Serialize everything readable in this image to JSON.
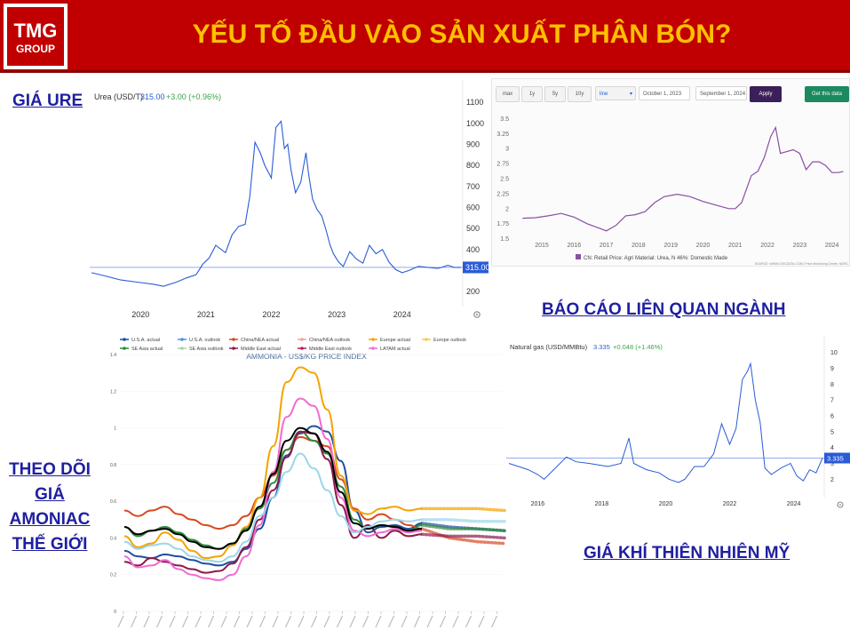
{
  "title": "YẾU TỐ ĐẦU VÀO SẢN XUẤT PHÂN BÓN?",
  "logo": {
    "line1": "TMG",
    "line2": "GROUP"
  },
  "headings": {
    "urea": "GIÁ URE",
    "reports": "BÁO CÁO LIÊN QUAN NGÀNH",
    "ammonia": [
      "THEO DÕI",
      "GIÁ",
      "AMONIAC",
      "THẾ GIỚI"
    ],
    "gas": "GIÁ KHÍ THIÊN NHIÊN MỸ"
  },
  "colors": {
    "banner": "#c00000",
    "title": "#ffc000",
    "heading": "#1f1fa0",
    "urea_line": "#2a5bd7",
    "cn_line": "#8a4fa3",
    "gas_line": "#2a5bd7"
  },
  "ceic_toolbar": {
    "buttons": [
      "max",
      "1y",
      "5y",
      "10y"
    ],
    "chart_type": "line",
    "start_date": "October 1, 2023",
    "end_date": "September 1, 2024",
    "apply": "Apply",
    "get_data": "Get this data"
  },
  "chart_data": [
    {
      "type": "line",
      "title": "Urea (USD/T)",
      "quote": {
        "price": "315.00",
        "change": "+3.00 (+0.96%)"
      },
      "last_value_label": "315.00",
      "x_ticks": [
        "2020",
        "2021",
        "2022",
        "2023",
        "2024"
      ],
      "y_ticks": [
        "1100",
        "1000",
        "900",
        "800",
        "700",
        "600",
        "500",
        "400",
        "300",
        "200"
      ],
      "ylim": [
        150,
        1130
      ],
      "xlim": [
        2019.3,
        2024.95
      ],
      "series": [
        {
          "x": [
            2019.3,
            2019.5,
            2019.75,
            2020.0,
            2020.25,
            2020.4,
            2020.6,
            2020.75,
            2020.9,
            2021.0,
            2021.1,
            2021.2,
            2021.35,
            2021.45,
            2021.55,
            2021.65,
            2021.72,
            2021.8,
            2021.88,
            2021.95,
            2022.05,
            2022.12,
            2022.2,
            2022.25,
            2022.3,
            2022.35,
            2022.42,
            2022.5,
            2022.58,
            2022.62,
            2022.68,
            2022.75,
            2022.82,
            2022.88,
            2022.95,
            2023.0,
            2023.08,
            2023.15,
            2023.25,
            2023.35,
            2023.45,
            2023.55,
            2023.65,
            2023.75,
            2023.85,
            2023.95,
            2024.05,
            2024.15,
            2024.3,
            2024.45,
            2024.6,
            2024.75,
            2024.85,
            2024.95
          ],
          "y": [
            290,
            275,
            255,
            245,
            235,
            225,
            245,
            265,
            280,
            330,
            360,
            420,
            385,
            470,
            510,
            520,
            650,
            910,
            860,
            800,
            740,
            980,
            1010,
            880,
            900,
            780,
            670,
            720,
            860,
            760,
            640,
            590,
            560,
            500,
            420,
            380,
            340,
            320,
            390,
            355,
            335,
            420,
            380,
            400,
            340,
            305,
            290,
            300,
            320,
            315,
            310,
            325,
            315,
            315
          ]
        }
      ]
    },
    {
      "type": "line",
      "series": [
        {
          "name": "CN: Retail Price: Agri Material: Urea, N 46%: Domestic Made",
          "x": [
            2014.4,
            2014.8,
            2015.2,
            2015.6,
            2016.0,
            2016.4,
            2016.8,
            2017.0,
            2017.3,
            2017.6,
            2017.9,
            2018.2,
            2018.5,
            2018.8,
            2019.2,
            2019.6,
            2020.0,
            2020.4,
            2020.8,
            2021.0,
            2021.2,
            2021.5,
            2021.7,
            2021.9,
            2022.1,
            2022.25,
            2022.4,
            2022.6,
            2022.8,
            2023.0,
            2023.2,
            2023.4,
            2023.6,
            2023.8,
            2024.0,
            2024.2,
            2024.35
          ],
          "y": [
            1.84,
            1.85,
            1.88,
            1.92,
            1.86,
            1.75,
            1.67,
            1.63,
            1.72,
            1.88,
            1.9,
            1.95,
            2.1,
            2.2,
            2.24,
            2.2,
            2.12,
            2.06,
            2.0,
            2.0,
            2.1,
            2.55,
            2.62,
            2.85,
            3.2,
            3.35,
            2.92,
            2.95,
            2.98,
            2.92,
            2.65,
            2.78,
            2.78,
            2.72,
            2.6,
            2.6,
            2.62
          ]
        }
      ],
      "x_ticks": [
        "2015",
        "2016",
        "2017",
        "2018",
        "2019",
        "2020",
        "2021",
        "2022",
        "2023",
        "2024"
      ],
      "y_ticks": [
        "3.5",
        "3.25",
        "3",
        "2.75",
        "2.5",
        "2.25",
        "2",
        "1.75",
        "1.5"
      ],
      "ylim": [
        1.45,
        3.55
      ],
      "xlim": [
        2014.2,
        2024.45
      ],
      "source": "SOURCE: WWW.CEICDATA.COM | Price Monitoring Center, NDRC"
    },
    {
      "type": "line",
      "title": "AMMONIA - US$/KG PRICE INDEX",
      "ylim": [
        0,
        1.4
      ],
      "y_ticks": [
        "1.4",
        "1.2",
        "1",
        "0.8",
        "0.6",
        "0.4",
        "0.2",
        "0"
      ],
      "legend": [
        "U.S.A. actual",
        "U.S.A. outlook",
        "China/NEA actual",
        "China/NEA outlook",
        "Europe actual",
        "Europe outlook",
        "SE Asia actual",
        "SE Asia outlook",
        "Middle East actual",
        "Middle East outlook",
        "LATAM actual"
      ],
      "series": [
        {
          "name": "U.S.A. actual",
          "color": "#1f4e9e",
          "values": [
            0.33,
            0.3,
            0.29,
            0.31,
            0.3,
            0.28,
            0.26,
            0.25,
            0.27,
            0.34,
            0.45,
            0.62,
            0.85,
            0.97,
            1.01,
            0.98,
            0.82,
            0.55,
            0.43,
            0.46,
            0.47,
            0.45,
            0.48
          ],
          "outlook": [
            0.46,
            0.45,
            0.44
          ]
        },
        {
          "name": "China/NEA actual",
          "color": "#d9481e",
          "values": [
            0.55,
            0.52,
            0.55,
            0.57,
            0.53,
            0.5,
            0.47,
            0.45,
            0.47,
            0.52,
            0.62,
            0.74,
            0.88,
            0.95,
            0.93,
            0.9,
            0.72,
            0.56,
            0.5,
            0.53,
            0.5,
            0.47,
            0.45
          ],
          "outlook": [
            0.4,
            0.38,
            0.37
          ]
        },
        {
          "name": "Europe actual",
          "color": "#f4a300",
          "values": [
            0.41,
            0.35,
            0.37,
            0.43,
            0.39,
            0.33,
            0.29,
            0.3,
            0.36,
            0.46,
            0.62,
            0.9,
            1.25,
            1.33,
            1.3,
            1.1,
            0.74,
            0.55,
            0.53,
            0.56,
            0.57,
            0.55,
            0.56
          ],
          "outlook": [
            0.56,
            0.56,
            0.55
          ]
        },
        {
          "name": "SE Asia actual",
          "color": "#2e8b3a",
          "values": [
            0.46,
            0.41,
            0.44,
            0.46,
            0.43,
            0.39,
            0.36,
            0.34,
            0.37,
            0.45,
            0.56,
            0.7,
            0.88,
            0.98,
            0.93,
            0.86,
            0.68,
            0.5,
            0.45,
            0.47,
            0.46,
            0.44,
            0.47
          ],
          "outlook": [
            0.45,
            0.45,
            0.44
          ]
        },
        {
          "name": "Middle East actual",
          "color": "#8b1a4a",
          "values": [
            0.27,
            0.25,
            0.29,
            0.27,
            0.25,
            0.23,
            0.21,
            0.22,
            0.26,
            0.35,
            0.5,
            0.66,
            0.84,
            0.98,
            0.97,
            0.83,
            0.58,
            0.4,
            0.47,
            0.4,
            0.44,
            0.41,
            0.42
          ],
          "outlook": [
            0.41,
            0.41,
            0.4
          ]
        },
        {
          "name": "LATAM actual",
          "color": "#f06bd0",
          "values": [
            0.3,
            0.24,
            0.25,
            0.28,
            0.23,
            0.2,
            0.18,
            0.17,
            0.2,
            0.3,
            0.47,
            0.76,
            1.06,
            1.16,
            1.12,
            0.94,
            0.62,
            0.44,
            0.41,
            0.43,
            0.45,
            0.43,
            0.44
          ],
          "outlook": []
        },
        {
          "name": "Black",
          "color": "#000000",
          "values": [
            0.46,
            0.42,
            0.44,
            0.45,
            0.42,
            0.38,
            0.35,
            0.34,
            0.37,
            0.44,
            0.57,
            0.75,
            0.93,
            1.0,
            0.97,
            0.87,
            0.65,
            0.48,
            0.45,
            0.47,
            0.46,
            0.44,
            0.45
          ],
          "outlook": []
        },
        {
          "name": "SE Asia outlook",
          "color": "#9ad6ea",
          "values": [
            0.38,
            0.34,
            0.36,
            0.37,
            0.34,
            0.3,
            0.28,
            0.27,
            0.3,
            0.38,
            0.52,
            0.62,
            0.76,
            0.86,
            0.78,
            0.66,
            0.52,
            0.43,
            0.46,
            0.49,
            0.5,
            0.49,
            0.5
          ],
          "outlook": [
            0.5,
            0.49,
            0.49
          ]
        }
      ]
    },
    {
      "type": "line",
      "title": "Natural gas (USD/MMBtu)",
      "quote": {
        "price": "3.335",
        "change": "+0.048 (+1.46%)"
      },
      "last_value_label": "3.335",
      "x_ticks": [
        "2016",
        "2018",
        "2020",
        "2022",
        "2024"
      ],
      "y_ticks": [
        "10",
        "9",
        "8",
        "7",
        "6",
        "5",
        "4",
        "3",
        "2"
      ],
      "ylim": [
        1.4,
        10.6
      ],
      "xlim": [
        2015.1,
        2024.9
      ],
      "series": [
        {
          "x": [
            2015.1,
            2015.4,
            2015.7,
            2016.0,
            2016.2,
            2016.5,
            2016.9,
            2017.2,
            2017.6,
            2017.9,
            2018.2,
            2018.6,
            2018.85,
            2019.0,
            2019.4,
            2019.8,
            2020.1,
            2020.4,
            2020.6,
            2020.9,
            2021.2,
            2021.5,
            2021.75,
            2022.0,
            2022.2,
            2022.4,
            2022.55,
            2022.65,
            2022.8,
            2022.95,
            2023.1,
            2023.3,
            2023.6,
            2023.9,
            2024.1,
            2024.3,
            2024.5,
            2024.7,
            2024.9
          ],
          "y": [
            3.0,
            2.8,
            2.6,
            2.3,
            2.0,
            2.6,
            3.4,
            3.1,
            3.0,
            2.9,
            2.8,
            3.0,
            4.6,
            3.0,
            2.6,
            2.4,
            2.0,
            1.8,
            2.0,
            2.8,
            2.8,
            3.6,
            5.5,
            4.2,
            5.2,
            8.3,
            8.8,
            9.3,
            7.0,
            5.6,
            2.7,
            2.3,
            2.7,
            3.0,
            2.2,
            1.9,
            2.6,
            2.4,
            3.335
          ]
        }
      ]
    }
  ]
}
